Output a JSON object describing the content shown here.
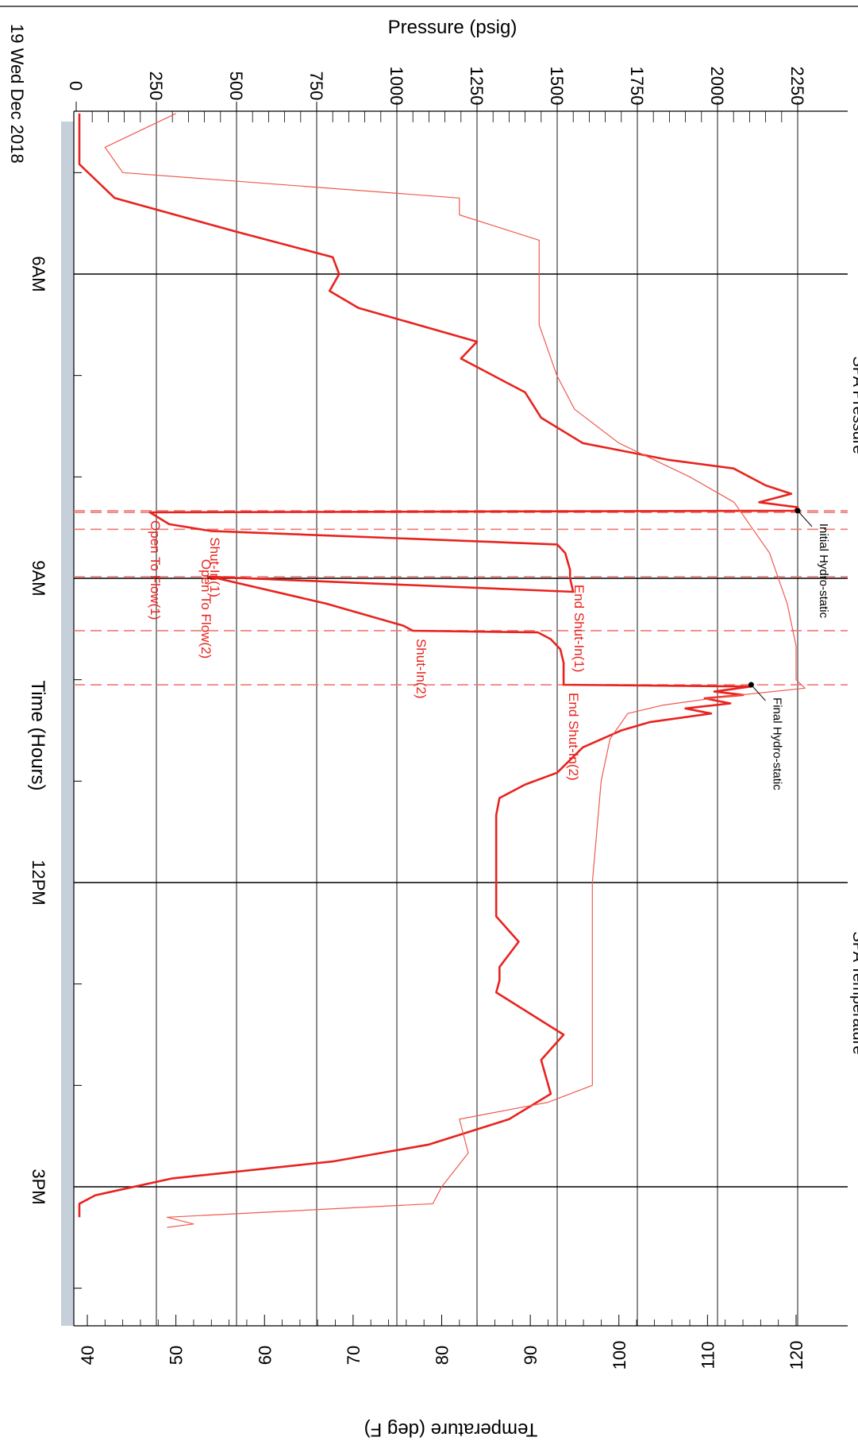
{
  "chart_data": {
    "type": "line",
    "title": "",
    "date_label": "19 Wed Dec 2018",
    "xlabel": "Time (Hours)",
    "x_ticks": [
      "6AM",
      "9AM",
      "12PM",
      "3PM"
    ],
    "y_left": {
      "label": "Pressure (psig)",
      "lim": [
        0,
        2300
      ],
      "ticks": [
        "0",
        "250",
        "500",
        "750",
        "1000",
        "1250",
        "1500",
        "1750",
        "2000",
        "2250"
      ]
    },
    "y_right": {
      "label": "Temperature (deg F)",
      "lim": [
        37.6,
        123.8
      ],
      "ticks": [
        "40",
        "50",
        "60",
        "70",
        "80",
        "90",
        "100",
        "110",
        "120"
      ]
    },
    "gauge_labels": [
      "SPA Pressure",
      "SPA Temperature"
    ],
    "colors": {
      "pressure": "#e8231e",
      "temperature": "#f05a4f",
      "grid": "#000000",
      "event_line": "#f07872",
      "frame": "#c5d0da"
    },
    "series": [
      {
        "name": "SPA Pressure",
        "axis": "left",
        "points": [
          [
            "04:25",
            10
          ],
          [
            "04:55",
            10
          ],
          [
            "05:15",
            120
          ],
          [
            "05:35",
            500
          ],
          [
            "05:50",
            800
          ],
          [
            "06:00",
            820
          ],
          [
            "06:10",
            790
          ],
          [
            "06:20",
            880
          ],
          [
            "06:40",
            1250
          ],
          [
            "06:50",
            1200
          ],
          [
            "07:10",
            1400
          ],
          [
            "07:25",
            1450
          ],
          [
            "07:40",
            1580
          ],
          [
            "07:50",
            1850
          ],
          [
            "07:55",
            2050
          ],
          [
            "08:05",
            2150
          ],
          [
            "08:10",
            2230
          ],
          [
            "08:15",
            2130
          ],
          [
            "08:18",
            2250
          ],
          [
            "08:20",
            2240
          ],
          [
            "08:21",
            230
          ],
          [
            "08:28",
            290
          ],
          [
            "08:32",
            420
          ],
          [
            "08:40",
            1500
          ],
          [
            "08:45",
            1525
          ],
          [
            "08:55",
            1540
          ],
          [
            "09:00",
            1540
          ],
          [
            "09:08",
            1550
          ],
          [
            "08:59",
            410
          ],
          [
            "09:00",
            440
          ],
          [
            "09:15",
            780
          ],
          [
            "09:28",
            1020
          ],
          [
            "09:31",
            1050
          ],
          [
            "09:32",
            1440
          ],
          [
            "09:36",
            1480
          ],
          [
            "09:42",
            1510
          ],
          [
            "09:50",
            1520
          ],
          [
            "10:02",
            1520
          ],
          [
            "10:03",
            1520
          ],
          [
            "10:04",
            2105
          ],
          [
            "10:07",
            1990
          ],
          [
            "10:09",
            2080
          ],
          [
            "10:11",
            1960
          ],
          [
            "10:14",
            2040
          ],
          [
            "10:17",
            1900
          ],
          [
            "10:20",
            1980
          ],
          [
            "10:25",
            1790
          ],
          [
            "10:30",
            1700
          ],
          [
            "10:40",
            1580
          ],
          [
            "10:55",
            1500
          ],
          [
            "11:02",
            1400
          ],
          [
            "11:10",
            1320
          ],
          [
            "11:20",
            1310
          ],
          [
            "11:45",
            1310
          ],
          [
            "12:00",
            1310
          ],
          [
            "12:20",
            1310
          ],
          [
            "12:35",
            1380
          ],
          [
            "12:50",
            1320
          ],
          [
            "12:58",
            1320
          ],
          [
            "13:05",
            1310
          ],
          [
            "13:30",
            1520
          ],
          [
            "13:45",
            1450
          ],
          [
            "14:05",
            1480
          ],
          [
            "14:20",
            1350
          ],
          [
            "14:35",
            1100
          ],
          [
            "14:45",
            800
          ],
          [
            "14:55",
            300
          ],
          [
            "15:05",
            60
          ],
          [
            "15:10",
            10
          ],
          [
            "15:18",
            10
          ]
        ]
      },
      {
        "name": "SPA Temperature",
        "axis": "right",
        "points": [
          [
            "04:25",
            50
          ],
          [
            "04:45",
            42
          ],
          [
            "05:00",
            44
          ],
          [
            "05:15",
            82
          ],
          [
            "05:25",
            82
          ],
          [
            "05:40",
            91
          ],
          [
            "06:00",
            91
          ],
          [
            "06:30",
            91
          ],
          [
            "07:00",
            93
          ],
          [
            "07:20",
            95
          ],
          [
            "07:40",
            100
          ],
          [
            "08:00",
            108
          ],
          [
            "08:15",
            113
          ],
          [
            "08:30",
            115
          ],
          [
            "08:45",
            117
          ],
          [
            "09:15",
            119
          ],
          [
            "09:40",
            120
          ],
          [
            "10:00",
            120
          ],
          [
            "10:05",
            121
          ],
          [
            "10:10",
            112
          ],
          [
            "10:15",
            105
          ],
          [
            "10:20",
            101
          ],
          [
            "10:35",
            99
          ],
          [
            "11:00",
            98
          ],
          [
            "12:00",
            97
          ],
          [
            "13:00",
            97
          ],
          [
            "14:00",
            97
          ],
          [
            "14:10",
            92
          ],
          [
            "14:20",
            82
          ],
          [
            "14:40",
            83
          ],
          [
            "15:00",
            80
          ],
          [
            "15:10",
            79
          ],
          [
            "15:18",
            49
          ],
          [
            "15:22",
            52
          ],
          [
            "15:24",
            49
          ]
        ]
      }
    ],
    "events": [
      {
        "label": "",
        "time": "08:20"
      },
      {
        "label": "Shut-In(1)",
        "time": "08:31"
      },
      {
        "label": "Open To Flow(1)",
        "time": "08:21"
      },
      {
        "label": "End Shut-In(1)",
        "time": "08:59"
      },
      {
        "label": "Open To Flow(2)",
        "time": "08:59"
      },
      {
        "label": "Shut-In(2)",
        "time": "09:31"
      },
      {
        "label": "End Shut-In(2)",
        "time": "10:03"
      }
    ],
    "annotations": [
      {
        "label": "Initial Hydro-static",
        "time": "08:20",
        "pressure": 2250
      },
      {
        "label": "Final Hydro-static",
        "time": "10:03",
        "pressure": 2105
      }
    ]
  }
}
